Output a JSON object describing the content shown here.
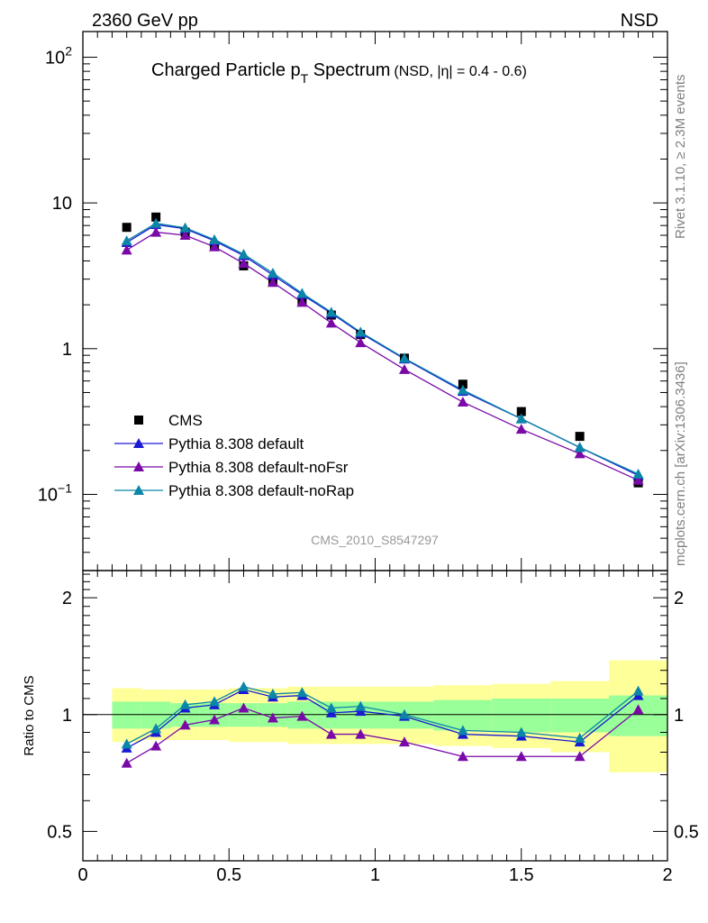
{
  "header": {
    "beam_label": "2360 GeV pp",
    "process_label": "NSD"
  },
  "side_labels": {
    "rivet": "Rivet 3.1.10, ≥ 2.3M events",
    "mcplots": "mcplots.cern.ch [arXiv:1306.3436]"
  },
  "colors": {
    "cms": "#000000",
    "default": "#1a1ad2",
    "noFsr": "#7a0aa8",
    "noRap": "#0b86a8",
    "band_outer": "#ffff99",
    "band_inner": "#99ff99",
    "analysis_label": "#999999"
  },
  "chart_data": [
    {
      "type": "scatter",
      "panel": "main",
      "title_main": "Charged Particle p",
      "title_sub": "T",
      "title_after": " Spectrum",
      "title_extra": "(NSD, |η| = 0.4 - 0.6)",
      "analysis_label": "CMS_2010_S8547297",
      "yscale": "log",
      "xlim": [
        0,
        2
      ],
      "ylim": [
        0.03,
        150
      ],
      "y_ticks": [
        {
          "value": 0.1,
          "base": "10",
          "exp": "−1"
        },
        {
          "value": 1,
          "base": "1",
          "exp": ""
        },
        {
          "value": 10,
          "base": "10",
          "exp": ""
        },
        {
          "value": 100,
          "base": "10",
          "exp": "2"
        }
      ],
      "legend_position": "lower-left",
      "x": [
        0.15,
        0.25,
        0.35,
        0.45,
        0.55,
        0.65,
        0.75,
        0.85,
        0.95,
        1.1,
        1.3,
        1.5,
        1.7,
        1.9
      ],
      "series": [
        {
          "key": "cms",
          "name": "CMS",
          "marker": "square",
          "line": false,
          "values": [
            6.8,
            8.0,
            6.3,
            5.1,
            3.7,
            2.9,
            2.1,
            1.7,
            1.25,
            0.86,
            0.57,
            0.37,
            0.25,
            0.12
          ]
        },
        {
          "key": "default",
          "name": "Pythia 8.308 default",
          "marker": "triangle",
          "line": true,
          "values": [
            5.35,
            7.1,
            6.65,
            5.5,
            4.35,
            3.2,
            2.35,
            1.75,
            1.28,
            0.85,
            0.51,
            0.33,
            0.21,
            0.135
          ]
        },
        {
          "key": "noFsr",
          "name": "Pythia 8.308 default-noFsr",
          "marker": "triangle",
          "line": true,
          "values": [
            4.75,
            6.3,
            6.0,
            5.0,
            3.85,
            2.85,
            2.08,
            1.5,
            1.1,
            0.72,
            0.43,
            0.28,
            0.19,
            0.125
          ]
        },
        {
          "key": "noRap",
          "name": "Pythia 8.308 default-noRap",
          "marker": "triangle",
          "line": true,
          "values": [
            5.5,
            7.25,
            6.75,
            5.6,
            4.45,
            3.3,
            2.4,
            1.78,
            1.3,
            0.86,
            0.52,
            0.33,
            0.21,
            0.138
          ]
        }
      ]
    },
    {
      "type": "line",
      "panel": "ratio",
      "ylabel": "Ratio to CMS",
      "yscale": "log",
      "xlim": [
        0,
        2
      ],
      "ylim": [
        0.42,
        2.35
      ],
      "x_ticks": [
        0,
        0.5,
        1,
        1.5,
        2
      ],
      "y_ticks": [
        0.5,
        1,
        2
      ],
      "reference": 1,
      "x": [
        0.15,
        0.25,
        0.35,
        0.45,
        0.55,
        0.65,
        0.75,
        0.85,
        0.95,
        1.1,
        1.3,
        1.5,
        1.7,
        1.9
      ],
      "bands": {
        "edges": [
          0.1,
          0.2,
          0.3,
          0.4,
          0.5,
          0.6,
          0.7,
          0.8,
          0.9,
          1.0,
          1.2,
          1.4,
          1.6,
          1.8,
          2.0
        ],
        "inner_low": [
          0.92,
          0.92,
          0.93,
          0.93,
          0.93,
          0.93,
          0.92,
          0.92,
          0.92,
          0.92,
          0.91,
          0.9,
          0.9,
          0.88
        ],
        "inner_high": [
          1.08,
          1.08,
          1.07,
          1.07,
          1.07,
          1.07,
          1.08,
          1.08,
          1.08,
          1.08,
          1.09,
          1.1,
          1.1,
          1.12
        ],
        "outer_low": [
          0.85,
          0.86,
          0.86,
          0.86,
          0.85,
          0.85,
          0.84,
          0.84,
          0.84,
          0.84,
          0.83,
          0.82,
          0.8,
          0.71
        ],
        "outer_high": [
          1.17,
          1.16,
          1.16,
          1.16,
          1.17,
          1.17,
          1.18,
          1.18,
          1.18,
          1.18,
          1.19,
          1.2,
          1.22,
          1.38
        ]
      },
      "series": [
        {
          "key": "default",
          "name": "Pythia 8.308 default",
          "values": [
            0.82,
            0.9,
            1.04,
            1.06,
            1.16,
            1.11,
            1.12,
            1.01,
            1.02,
            0.99,
            0.89,
            0.88,
            0.85,
            1.12
          ]
        },
        {
          "key": "noFsr",
          "name": "Pythia 8.308 default-noFsr",
          "values": [
            0.75,
            0.83,
            0.94,
            0.97,
            1.04,
            0.98,
            0.99,
            0.89,
            0.89,
            0.85,
            0.78,
            0.78,
            0.78,
            1.03
          ]
        },
        {
          "key": "noRap",
          "name": "Pythia 8.308 default-noRap",
          "values": [
            0.84,
            0.92,
            1.06,
            1.08,
            1.18,
            1.13,
            1.14,
            1.04,
            1.05,
            1.0,
            0.91,
            0.9,
            0.87,
            1.15
          ]
        }
      ]
    }
  ]
}
